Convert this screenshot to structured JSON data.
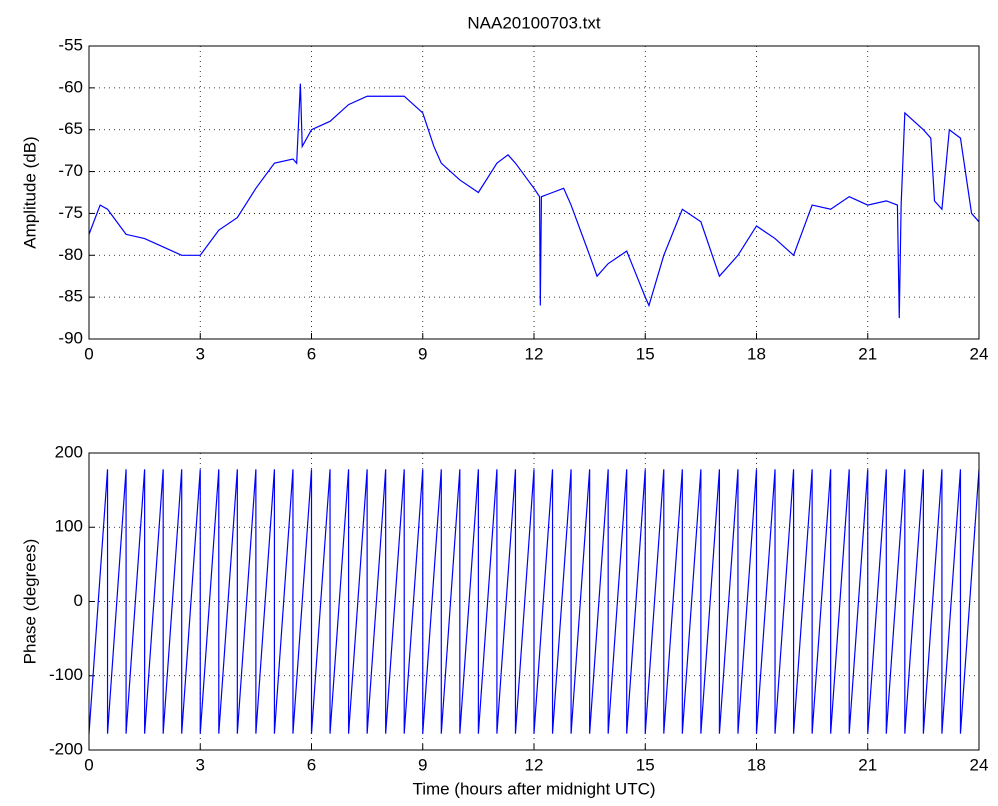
{
  "chart_data": [
    {
      "type": "line",
      "title": "NAA20100703.txt",
      "ylabel": "Amplitude (dB)",
      "xlim": [
        0,
        24
      ],
      "xticks": [
        0,
        3,
        6,
        9,
        12,
        15,
        18,
        21,
        24
      ],
      "ylim": [
        -90,
        -55
      ],
      "yticks": [
        -90,
        -85,
        -80,
        -75,
        -70,
        -65,
        -60,
        -55
      ],
      "grid": true,
      "x": [
        0,
        0.3,
        0.5,
        1,
        1.5,
        2,
        2.5,
        3,
        3.5,
        4,
        4.5,
        5,
        5.5,
        5.6,
        5.7,
        5.75,
        6,
        6.5,
        7,
        7.5,
        8,
        8.5,
        9,
        9.3,
        9.5,
        10,
        10.5,
        11,
        11.3,
        11.5,
        12,
        12.15,
        12.17,
        12.2,
        12.5,
        12.8,
        13,
        13.5,
        13.7,
        14,
        14.5,
        15,
        15.1,
        15.5,
        16,
        16.5,
        17,
        17.5,
        18,
        18.5,
        19,
        19.5,
        20,
        20.5,
        21,
        21.5,
        21.8,
        21.85,
        21.9,
        22,
        22.5,
        22.7,
        22.8,
        23,
        23.2,
        23.5,
        23.8,
        24
      ],
      "series": [
        {
          "name": "Amplitude",
          "color": "#0000ff",
          "values": [
            -77.5,
            -74,
            -74.5,
            -77.5,
            -78,
            -79,
            -80,
            -80,
            -77,
            -75.5,
            -72,
            -69,
            -68.5,
            -69,
            -59.5,
            -67,
            -65,
            -64,
            -62,
            -61,
            -61,
            -61,
            -63,
            -67,
            -69,
            -71,
            -72.5,
            -69,
            -68,
            -69,
            -72,
            -73,
            -86,
            -73,
            -72.5,
            -72,
            -74,
            -80,
            -82.5,
            -81,
            -79.5,
            -85,
            -86,
            -80,
            -74.5,
            -76,
            -82.5,
            -80,
            -76.5,
            -78,
            -80,
            -74,
            -74.5,
            -73,
            -74,
            -73.5,
            -74,
            -87.5,
            -74,
            -63,
            -65,
            -66,
            -73.5,
            -74.5,
            -65,
            -66,
            -75,
            -76
          ]
        }
      ]
    },
    {
      "type": "line",
      "ylabel": "Phase (degrees)",
      "xlabel": "Time (hours after midnight UTC)",
      "xlim": [
        0,
        24
      ],
      "xticks": [
        0,
        3,
        6,
        9,
        12,
        15,
        18,
        21,
        24
      ],
      "ylim": [
        -200,
        200
      ],
      "yticks": [
        -200,
        -100,
        0,
        100,
        200
      ],
      "grid": true,
      "x": [
        0,
        0.5,
        0.5,
        1,
        1,
        1.5,
        1.5,
        2,
        2,
        2.5,
        2.5,
        3,
        3,
        3.5,
        3.5,
        4,
        4,
        4.5,
        4.5,
        5,
        5,
        5.5,
        5.5,
        6,
        6,
        6.5,
        6.5,
        7,
        7,
        7.5,
        7.5,
        8,
        8,
        8.5,
        8.5,
        9,
        9,
        9.5,
        9.5,
        10,
        10,
        10.5,
        10.5,
        11,
        11,
        11.5,
        11.5,
        12,
        12,
        12.5,
        12.5,
        13,
        13,
        13.5,
        13.5,
        14,
        14,
        14.5,
        14.5,
        15,
        15,
        15.5,
        15.5,
        16,
        16,
        16.5,
        16.5,
        17,
        17,
        17.5,
        17.5,
        18,
        18,
        18.5,
        18.5,
        19,
        19,
        19.5,
        19.5,
        20,
        20,
        20.5,
        20.5,
        21,
        21,
        21.5,
        21.5,
        22,
        22,
        22.5,
        22.5,
        23,
        23,
        23.5,
        23.5,
        24
      ],
      "series": [
        {
          "name": "Phase",
          "color": "#0000ff",
          "values": [
            -178,
            178,
            -178,
            178,
            -178,
            178,
            -178,
            178,
            -178,
            178,
            -178,
            178,
            -178,
            178,
            -178,
            178,
            -178,
            178,
            -178,
            178,
            -178,
            178,
            -178,
            178,
            -178,
            178,
            -178,
            178,
            -178,
            178,
            -178,
            178,
            -178,
            178,
            -178,
            178,
            -178,
            178,
            -178,
            178,
            -178,
            178,
            -178,
            178,
            -178,
            178,
            -178,
            178,
            -178,
            178,
            -178,
            178,
            -178,
            178,
            -178,
            178,
            -178,
            178,
            -178,
            178,
            -178,
            178,
            -178,
            178,
            -178,
            178,
            -178,
            178,
            -178,
            178,
            -178,
            178,
            -178,
            178,
            -178,
            178,
            -178,
            178,
            -178,
            178,
            -178,
            178,
            -178,
            178,
            -178,
            178,
            -178,
            178,
            -178,
            178,
            -178,
            178,
            -178,
            178,
            -178,
            178
          ]
        }
      ]
    }
  ]
}
